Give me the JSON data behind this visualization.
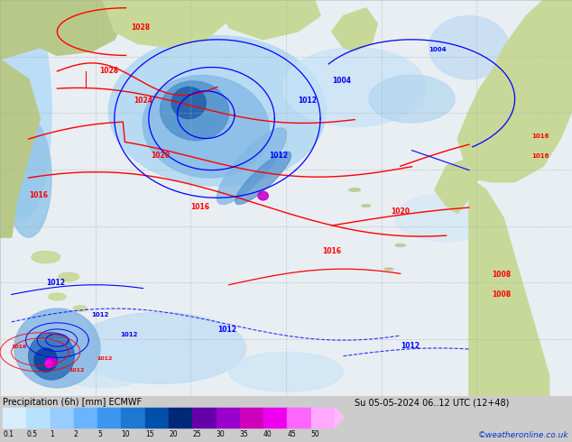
{
  "title_left": "Precipitation (6h) [mm] ECMWF",
  "title_right": "Su 05-05-2024 06..12 UTC (12+48)",
  "colorbar_values": [
    0.1,
    0.5,
    1,
    2,
    5,
    10,
    15,
    20,
    25,
    30,
    35,
    40,
    45,
    50
  ],
  "colorbar_colors": [
    "#d8eeff",
    "#b8e0ff",
    "#96ccff",
    "#6ab4ff",
    "#3d96f0",
    "#1e78d2",
    "#0050aa",
    "#002878",
    "#6600aa",
    "#9900cc",
    "#cc00bb",
    "#ee00ee",
    "#ff66ff",
    "#ffaaff"
  ],
  "watermark": "©weatheronline.co.uk",
  "ocean_color": "#e8eef2",
  "land_color": "#c8d898",
  "land_color2": "#b8c888",
  "grid_color": "#aaaaaa",
  "fig_width": 6.34,
  "fig_height": 4.9,
  "dpi": 100
}
